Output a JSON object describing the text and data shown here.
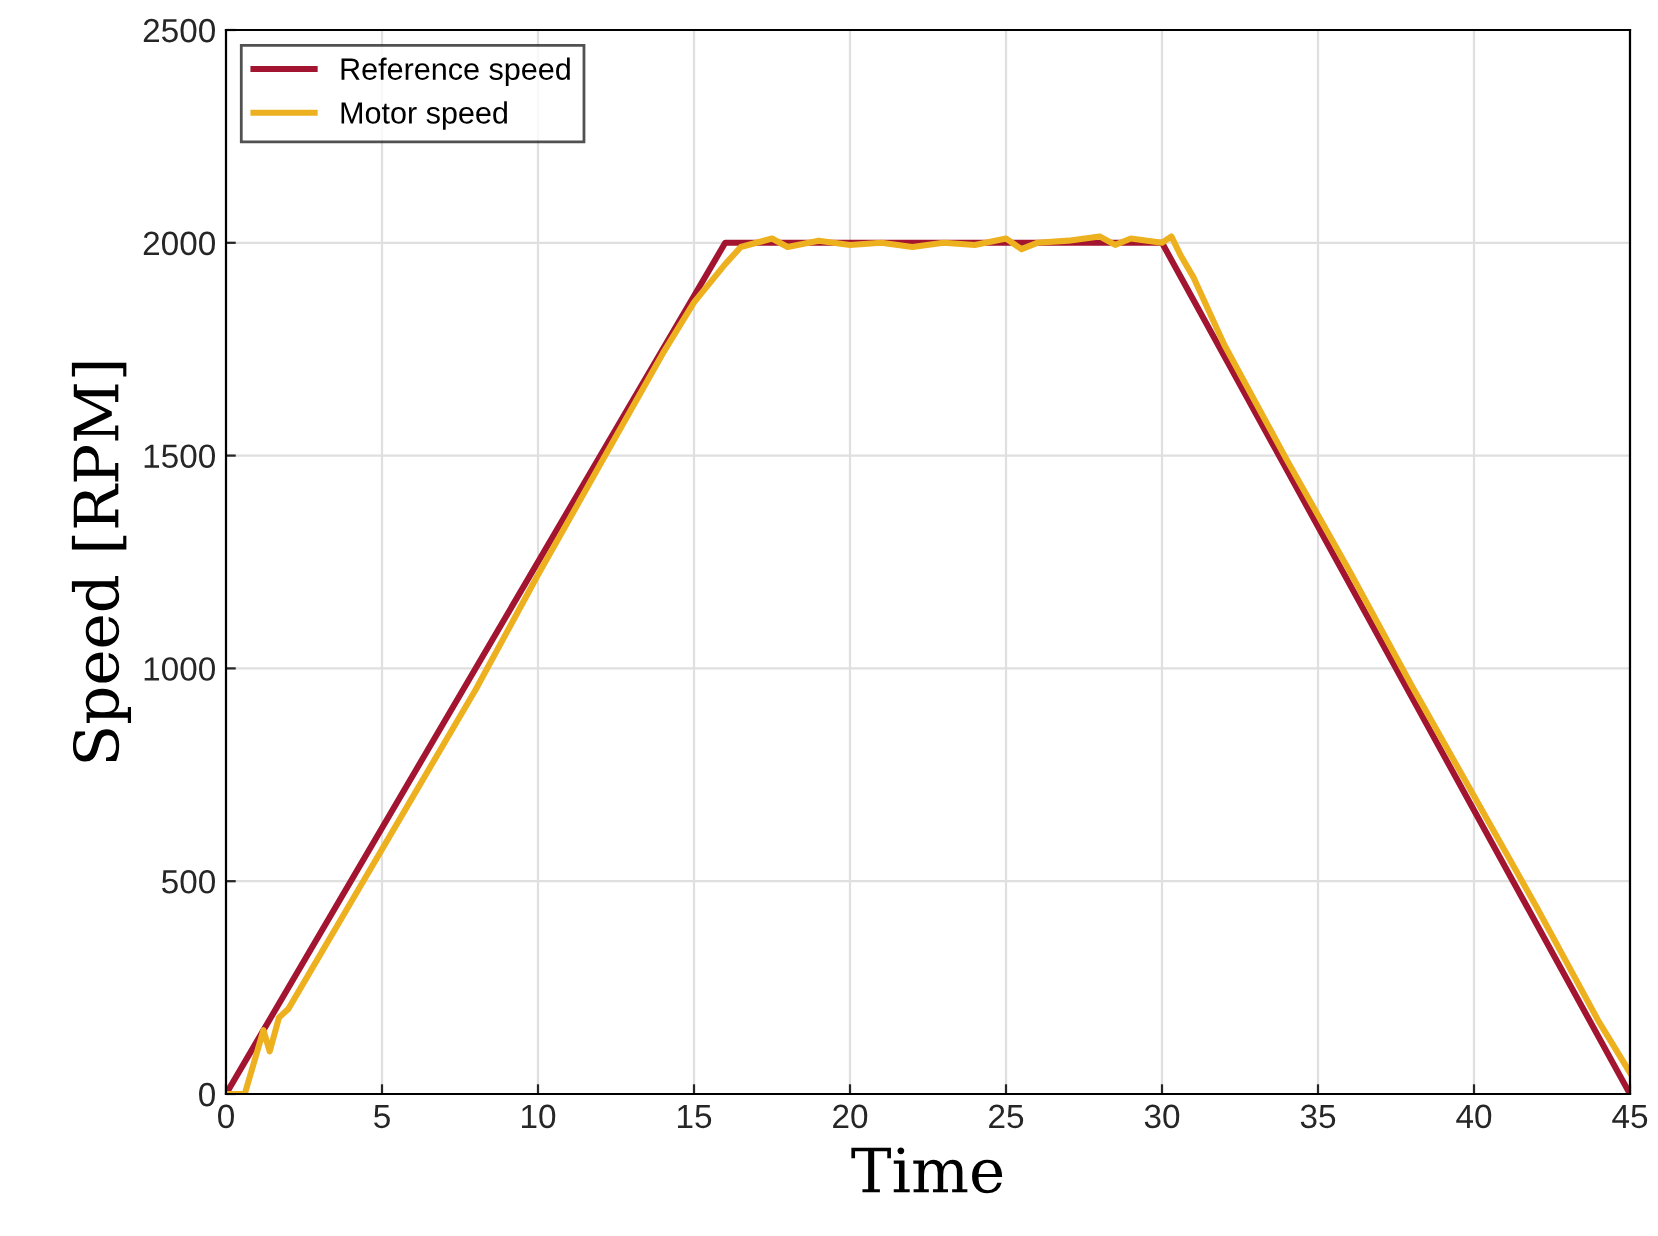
{
  "chart_data": {
    "type": "line",
    "xlabel": "Time",
    "ylabel": "Speed [RPM]",
    "xlim": [
      0,
      45
    ],
    "ylim": [
      0,
      2500
    ],
    "xticks": [
      0,
      5,
      10,
      15,
      20,
      25,
      30,
      35,
      40,
      45
    ],
    "yticks": [
      0,
      500,
      1000,
      1500,
      2000,
      2500
    ],
    "grid": true,
    "legend": "top left",
    "line_style": "solid",
    "marker": "none",
    "series": [
      {
        "name": "Reference speed",
        "color": "#a2142f",
        "x": [
          0,
          16,
          30,
          45
        ],
        "values": [
          0,
          2000,
          2000,
          0
        ]
      },
      {
        "name": "Motor speed",
        "color": "#edb120",
        "x": [
          0,
          0.6,
          1.2,
          1.4,
          1.7,
          2,
          4,
          6,
          8,
          10,
          12,
          14,
          15,
          16,
          16.5,
          17,
          17.5,
          18,
          19,
          20,
          21,
          22,
          23,
          24,
          25,
          25.5,
          26,
          27,
          28,
          28.5,
          29,
          30,
          30.3,
          30.6,
          31,
          32,
          34,
          36,
          38,
          40,
          42,
          44,
          45
        ],
        "values": [
          0,
          0,
          150,
          100,
          180,
          200,
          450,
          700,
          950,
          1220,
          1480,
          1740,
          1860,
          1950,
          1990,
          2000,
          2010,
          1990,
          2005,
          1995,
          2000,
          1990,
          2000,
          1995,
          2010,
          1985,
          2000,
          2005,
          2015,
          1995,
          2010,
          2000,
          2015,
          1970,
          1920,
          1760,
          1490,
          1230,
          960,
          700,
          440,
          170,
          50
        ]
      }
    ]
  }
}
